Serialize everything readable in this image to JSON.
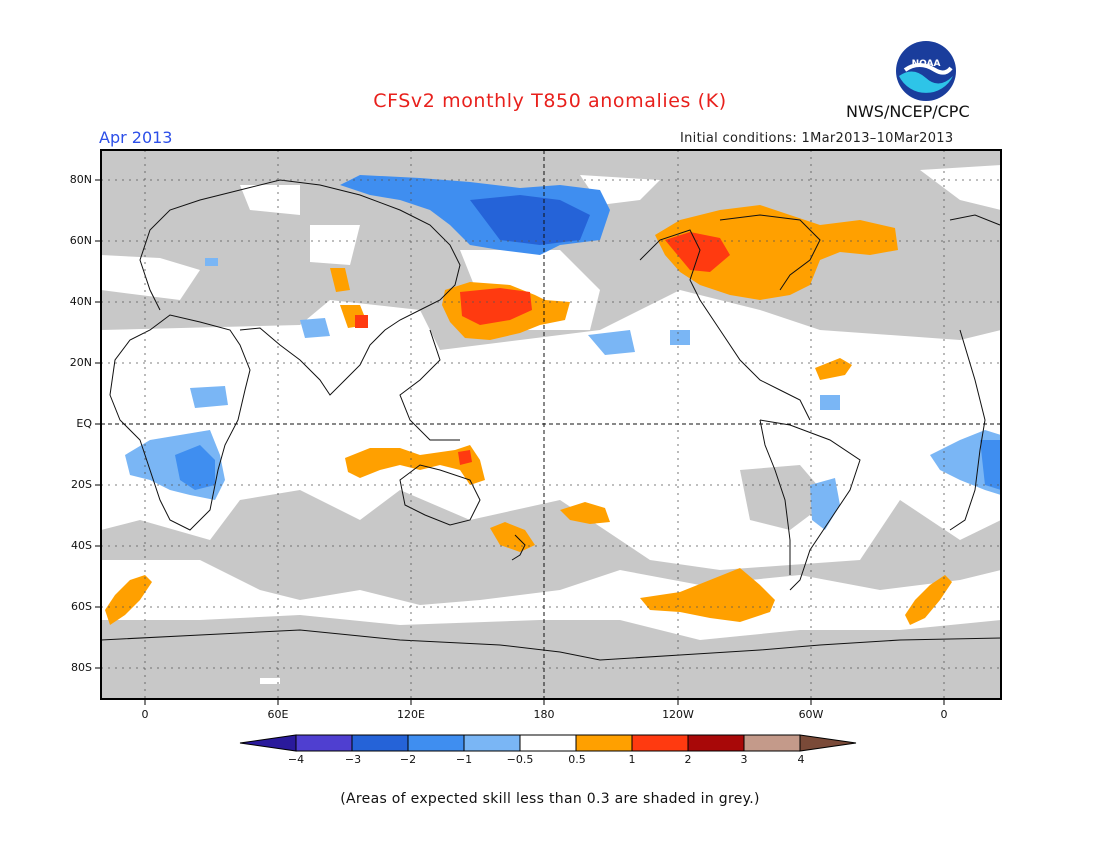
{
  "header": {
    "title": "CFSv2 monthly T850 anomalies (K)",
    "month": "Apr 2013",
    "initial_conditions": "Initial conditions: 1Mar2013–10Mar2013",
    "agency": "NWS/NCEP/CPC",
    "logo_text": "NOAA"
  },
  "map": {
    "lat_labels": [
      "80N",
      "60N",
      "40N",
      "20N",
      "EQ",
      "20S",
      "40S",
      "60S",
      "80S"
    ],
    "lon_labels": [
      "0",
      "60E",
      "120E",
      "180",
      "120W",
      "60W",
      "0"
    ],
    "skill_shading_color": "#c8c8c8"
  },
  "colorbar": {
    "labels": [
      "−4",
      "−3",
      "−2",
      "−1",
      "−0.5",
      "0.5",
      "1",
      "2",
      "3",
      "4"
    ],
    "colors": [
      "#2a1a9c",
      "#4f3fd0",
      "#2563d8",
      "#3f8ef0",
      "#7ab6f5",
      "#ffffff",
      "#ffa000",
      "#ff3a10",
      "#a80808",
      "#c49a8a",
      "#7a4a38"
    ]
  },
  "footnote": "(Areas of expected skill less than 0.3 are shaded in grey.)"
}
